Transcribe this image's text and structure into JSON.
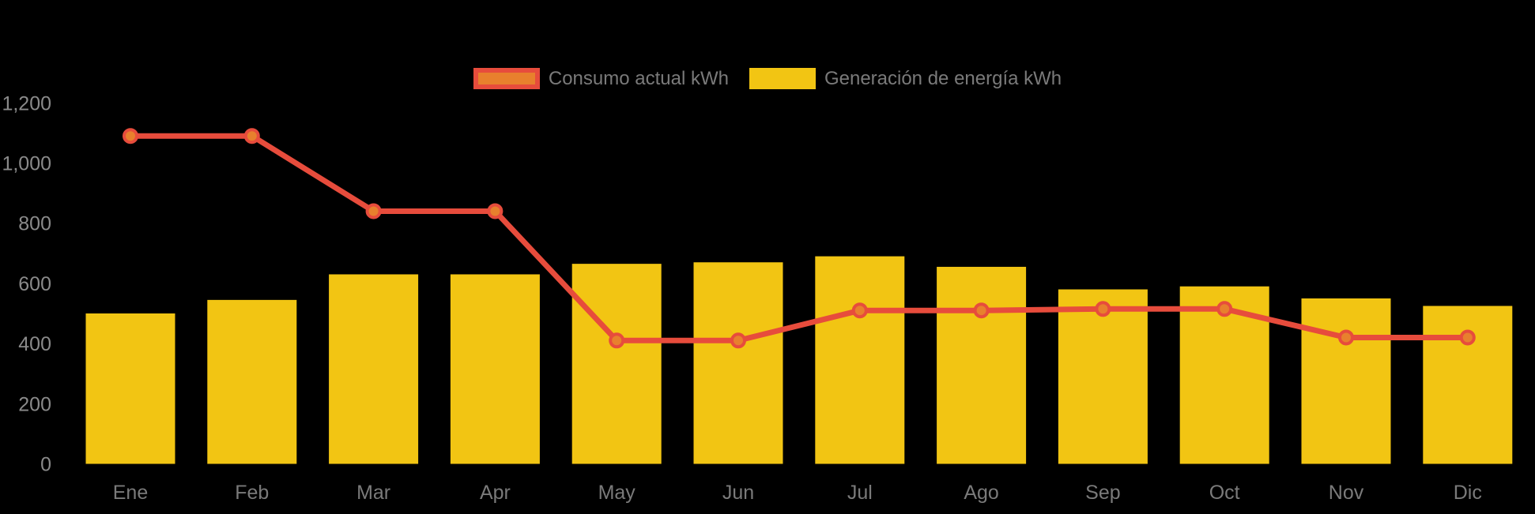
{
  "page": {
    "background_color": "#000000"
  },
  "legend": {
    "text_color": "#7A7A7A",
    "items": [
      {
        "label": "Consumo actual kWh",
        "swatch_fill": "#E8802D",
        "swatch_border": "#E74C3C",
        "swatch_border_width": 6
      },
      {
        "label": "Generación de energía kWh",
        "swatch_fill": "#F2C513",
        "swatch_border": "#F2C513",
        "swatch_border_width": 0
      }
    ]
  },
  "chart_data": {
    "type": "bar",
    "subtype": "bar-and-line combo",
    "title": "",
    "xlabel": "",
    "ylabel": "",
    "categories": [
      "Ene",
      "Feb",
      "Mar",
      "Apr",
      "May",
      "Jun",
      "Jul",
      "Ago",
      "Sep",
      "Oct",
      "Nov",
      "Dic"
    ],
    "series": [
      {
        "name": "Consumo actual kWh",
        "type": "line",
        "color": "#E74C3C",
        "point_fill": "#E8802D",
        "values": [
          1090,
          1090,
          840,
          840,
          410,
          410,
          510,
          510,
          515,
          515,
          420,
          420
        ]
      },
      {
        "name": "Generación de energía kWh",
        "type": "bar",
        "color": "#F2C513",
        "values": [
          500,
          545,
          630,
          630,
          665,
          670,
          690,
          655,
          580,
          590,
          550,
          525
        ]
      }
    ],
    "ylim": [
      0,
      1200
    ],
    "ytick_step": 200,
    "ytick_labels": [
      "0",
      "200",
      "400",
      "600",
      "800",
      "1,000",
      "1,200"
    ],
    "axis_text_color": "#8A8A8A",
    "x_axis_text_color": "#7A7A7A",
    "grid": false,
    "legend_position": "top"
  }
}
